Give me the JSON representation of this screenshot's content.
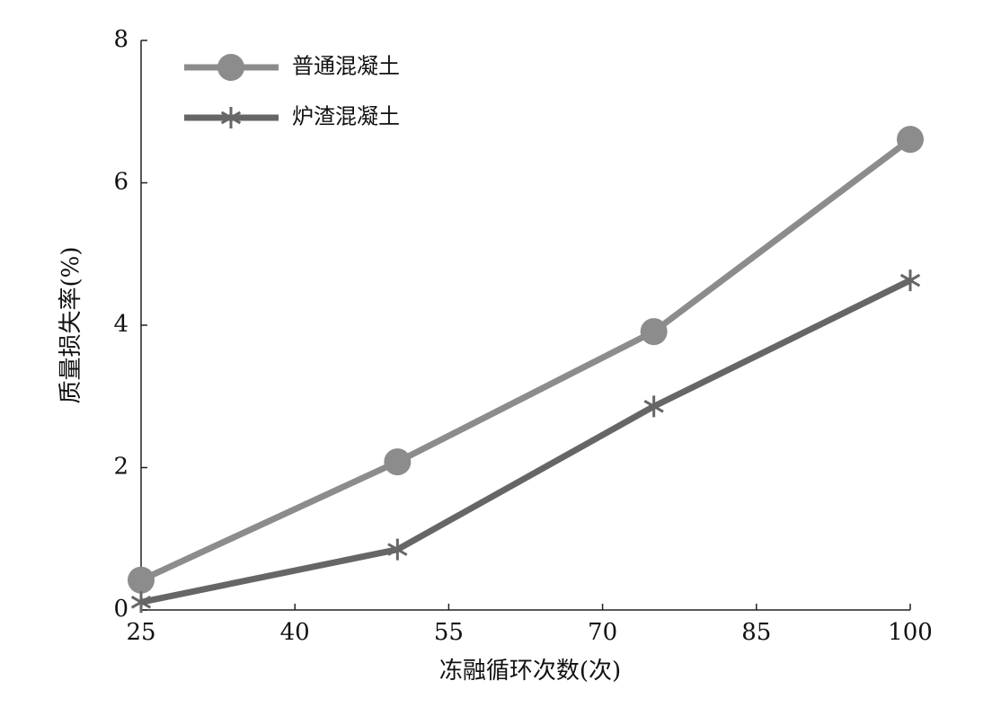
{
  "chart_data": {
    "type": "line",
    "xlabel": "冻融循环次数(次)",
    "ylabel": "质量损失率(%)",
    "x": [
      25,
      50,
      75,
      100
    ],
    "series": [
      {
        "name": "普通混凝土",
        "color": "#8c8c8c",
        "marker": "circle",
        "values": [
          0.42,
          2.08,
          3.91,
          6.61
        ]
      },
      {
        "name": "炉渣混凝土",
        "color": "#666666",
        "marker": "asterisk",
        "values": [
          0.11,
          0.85,
          2.86,
          4.63
        ]
      }
    ],
    "xlim": [
      25,
      100
    ],
    "xticks": [
      25,
      40,
      55,
      70,
      85,
      100
    ],
    "ylim": [
      0,
      8
    ],
    "yticks": [
      0,
      2,
      4,
      6,
      8
    ],
    "grid": false,
    "legend": "upper left"
  }
}
